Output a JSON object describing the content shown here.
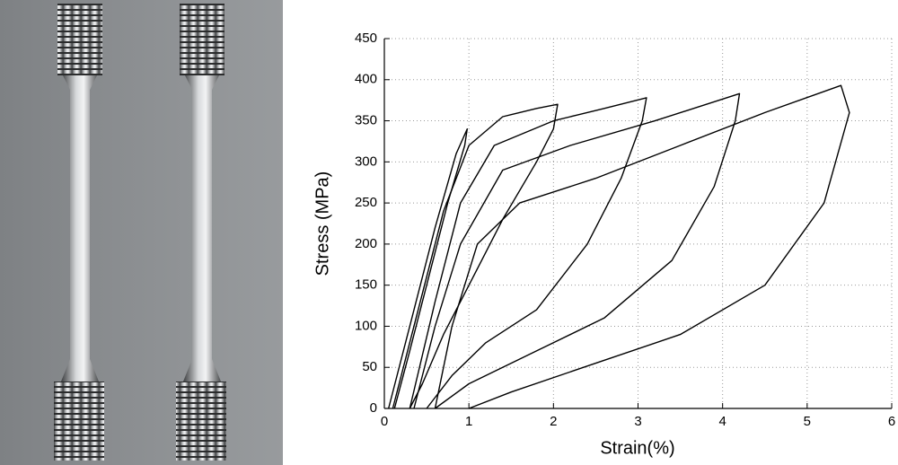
{
  "chart_data": {
    "type": "line",
    "x_label": "Strain(%)",
    "y_label": "Stress (MPa)",
    "xlim": [
      0,
      6
    ],
    "xticks": [
      0,
      1,
      2,
      3,
      4,
      5,
      6
    ],
    "ylim": [
      0,
      450
    ],
    "yticks": [
      0,
      50,
      100,
      150,
      200,
      250,
      300,
      350,
      400,
      450
    ],
    "grid": true,
    "series": [
      {
        "color": "#000000",
        "x": [
          0.05,
          0.3,
          0.6,
          0.85,
          0.98,
          0.95,
          0.75,
          0.5,
          0.3,
          0.12
        ],
        "values": [
          0,
          100,
          220,
          310,
          340,
          320,
          250,
          150,
          70,
          0
        ]
      },
      {
        "color": "#000000",
        "x": [
          0.1,
          0.4,
          0.7,
          1.0,
          1.4,
          1.8,
          2.05,
          2.0,
          1.8,
          1.4,
          1.0,
          0.7,
          0.45,
          0.3
        ],
        "values": [
          0,
          120,
          240,
          320,
          355,
          365,
          370,
          340,
          300,
          230,
          150,
          90,
          30,
          0
        ]
      },
      {
        "color": "#000000",
        "x": [
          0.3,
          0.6,
          0.9,
          1.3,
          2.0,
          2.6,
          3.1,
          3.05,
          2.8,
          2.4,
          1.8,
          1.2,
          0.8,
          0.5
        ],
        "values": [
          0,
          130,
          250,
          320,
          350,
          365,
          378,
          350,
          280,
          200,
          120,
          80,
          40,
          0
        ]
      },
      {
        "color": "#000000",
        "x": [
          0.35,
          0.6,
          0.9,
          1.4,
          2.2,
          3.2,
          4.2,
          4.15,
          3.9,
          3.4,
          2.6,
          1.8,
          1.0,
          0.6
        ],
        "values": [
          0,
          100,
          200,
          290,
          320,
          350,
          383,
          350,
          270,
          180,
          110,
          70,
          30,
          0
        ]
      },
      {
        "color": "#000000",
        "x": [
          0.6,
          0.8,
          1.1,
          1.6,
          2.5,
          3.5,
          4.5,
          5.4,
          5.5,
          5.2,
          4.5,
          3.5,
          2.5,
          1.5,
          1.0
        ],
        "values": [
          0,
          100,
          200,
          250,
          280,
          320,
          360,
          393,
          360,
          250,
          150,
          90,
          55,
          20,
          0
        ]
      }
    ]
  }
}
